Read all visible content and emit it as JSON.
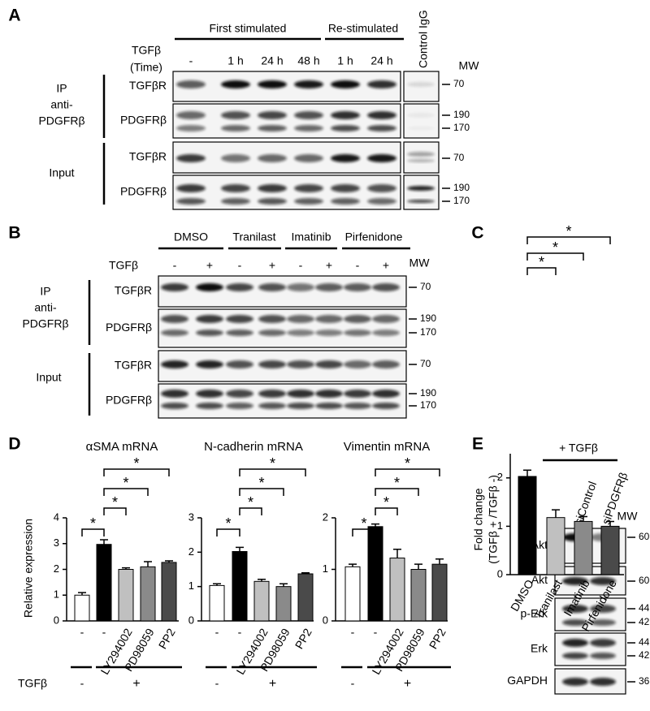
{
  "panel_a": {
    "letter": "A",
    "groups": [
      "First stimulated",
      "Re-stimulated"
    ],
    "treatment": [
      "TGFβ",
      "(Time)"
    ],
    "lanes": [
      "-",
      "1 h",
      "24 h",
      "48 h",
      "1 h",
      "24 h"
    ],
    "control": "Control IgG",
    "mw_header": "MW",
    "ip": [
      "IP",
      "anti-",
      "PDGFRβ"
    ],
    "input": "Input",
    "rows": [
      "TGFβR",
      "PDGFRβ",
      "TGFβR",
      "PDGFRβ"
    ],
    "mw": [
      [
        70
      ],
      [
        190,
        170
      ],
      [
        70
      ],
      [
        190,
        170
      ]
    ]
  },
  "panel_b": {
    "letter": "B",
    "groups": [
      "DMSO",
      "Tranilast",
      "Imatinib",
      "Pirfenidone"
    ],
    "treatment": "TGFβ",
    "lanes": [
      "-",
      "+",
      "-",
      "+",
      "-",
      "+",
      "-",
      "+"
    ],
    "mw_header": "MW",
    "ip": [
      "IP",
      "anti-",
      "PDGFRβ"
    ],
    "input": "Input",
    "rows": [
      "TGFβR",
      "PDGFRβ",
      "TGFβR",
      "PDGFRβ"
    ],
    "mw": [
      [
        70
      ],
      [
        190,
        170
      ],
      [
        70
      ],
      [
        190,
        170
      ]
    ]
  },
  "chart_data": [
    {
      "type": "bar",
      "panel": "C",
      "y_label": [
        "Fold change",
        "(TGFβ + /TGFβ -)"
      ],
      "categories": [
        "DMSO",
        "Tranilast",
        "Imatinib",
        "Pirfenidone"
      ],
      "values": [
        2.03,
        1.18,
        1.1,
        1.0
      ],
      "errors": [
        0.13,
        0.16,
        0.1,
        0.1
      ],
      "colors": [
        "#000000",
        "#c0c0c0",
        "#8a8a8a",
        "#4a4a4a"
      ],
      "ylim": [
        0,
        2.5
      ],
      "yticks": [
        0,
        1,
        2
      ],
      "annotations": [
        "*",
        "*",
        "*"
      ]
    },
    {
      "type": "bar",
      "panel": "D",
      "title": "αSMA mRNA",
      "y_label": "Relative expression",
      "categories": [
        "-",
        "-",
        "LY294002",
        "PD98059",
        "PP2"
      ],
      "treatment": "TGFβ",
      "treatment_levels": [
        "-",
        "+"
      ],
      "values": [
        1.0,
        2.97,
        2.0,
        2.1,
        2.27
      ],
      "errors": [
        0.1,
        0.18,
        0.06,
        0.2,
        0.06
      ],
      "colors": [
        "#ffffff",
        "#000000",
        "#c0c0c0",
        "#8a8a8a",
        "#4a4a4a"
      ],
      "ylim": [
        0,
        4
      ],
      "yticks": [
        0,
        1,
        2,
        3,
        4
      ],
      "annotations": [
        "*",
        "*",
        "*",
        "*"
      ]
    },
    {
      "type": "bar",
      "title": "N-cadherin mRNA",
      "categories": [
        "-",
        "-",
        "LY294002",
        "PD98059",
        "PP2"
      ],
      "treatment_levels": [
        "-",
        "+"
      ],
      "values": [
        1.03,
        2.02,
        1.15,
        1.0,
        1.37
      ],
      "errors": [
        0.05,
        0.12,
        0.06,
        0.08,
        0.03
      ],
      "colors": [
        "#ffffff",
        "#000000",
        "#c0c0c0",
        "#8a8a8a",
        "#4a4a4a"
      ],
      "ylim": [
        0,
        3
      ],
      "yticks": [
        0,
        1,
        2,
        3
      ],
      "annotations": [
        "*",
        "*",
        "*",
        "*"
      ]
    },
    {
      "type": "bar",
      "title": "Vimentin mRNA",
      "categories": [
        "-",
        "-",
        "LY294002",
        "PD98059",
        "PP2"
      ],
      "treatment_levels": [
        "-",
        "+"
      ],
      "values": [
        1.05,
        1.83,
        1.22,
        1.0,
        1.1
      ],
      "errors": [
        0.05,
        0.05,
        0.17,
        0.1,
        0.1
      ],
      "colors": [
        "#ffffff",
        "#000000",
        "#c0c0c0",
        "#8a8a8a",
        "#4a4a4a"
      ],
      "ylim": [
        0,
        2
      ],
      "yticks": [
        0,
        1,
        2
      ],
      "annotations": [
        "*",
        "*",
        "*",
        "*"
      ]
    }
  ],
  "panel_e": {
    "letter": "E",
    "treatment": "+ TGFβ",
    "lanes": [
      "siControl",
      "siPDGFRβ"
    ],
    "mw_header": "MW",
    "rows": [
      "p-Akt",
      "Akt",
      "p-Erk",
      "Erk",
      "GAPDH"
    ],
    "mw": [
      [
        60
      ],
      [
        60
      ],
      [
        44,
        42
      ],
      [
        44,
        42
      ],
      [
        36
      ]
    ]
  }
}
